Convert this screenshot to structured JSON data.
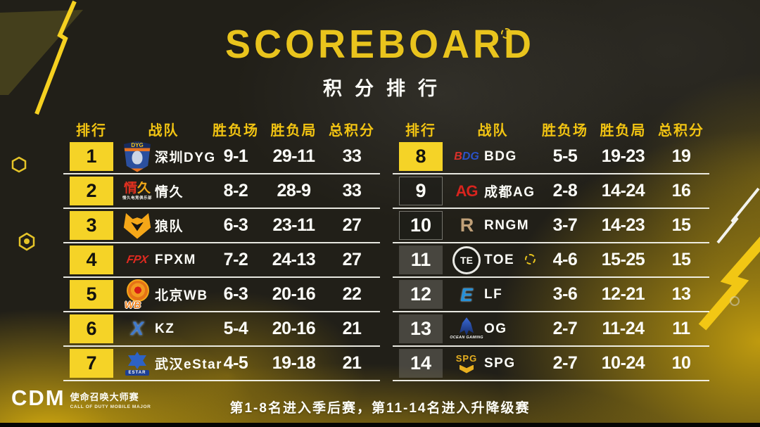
{
  "title": "SCOREBOARD",
  "subtitle": "积分排行",
  "columns": [
    "排行",
    "战队",
    "胜负场",
    "胜负局",
    "总积分"
  ],
  "tables": [
    {
      "side": "left",
      "rows": [
        {
          "rank": "1",
          "team": "深圳DYG",
          "series": "9-1",
          "maps": "29-11",
          "points": "33",
          "rank_style": "gold",
          "logo": {
            "style": "dyg",
            "text": "DYG"
          }
        },
        {
          "rank": "2",
          "team": "情久",
          "series": "8-2",
          "maps": "28-9",
          "points": "33",
          "rank_style": "gold",
          "logo": {
            "style": "qj",
            "text": "情久",
            "caption": "情久电竞俱乐部"
          }
        },
        {
          "rank": "3",
          "team": "狼队",
          "series": "6-3",
          "maps": "23-11",
          "points": "27",
          "rank_style": "gold",
          "logo": {
            "style": "wolf"
          }
        },
        {
          "rank": "4",
          "team": "FPXM",
          "series": "7-2",
          "maps": "24-13",
          "points": "27",
          "rank_style": "gold",
          "logo": {
            "style": "fpx",
            "text": "FPX"
          }
        },
        {
          "rank": "5",
          "team": "北京WB",
          "series": "6-3",
          "maps": "20-16",
          "points": "22",
          "rank_style": "gold",
          "logo": {
            "style": "wb",
            "text": "WB"
          }
        },
        {
          "rank": "6",
          "team": "KZ",
          "series": "5-4",
          "maps": "20-16",
          "points": "21",
          "rank_style": "gold",
          "logo": {
            "style": "kz",
            "text": "X"
          }
        },
        {
          "rank": "7",
          "team": "武汉eStar",
          "series": "4-5",
          "maps": "19-18",
          "points": "21",
          "rank_style": "gold",
          "logo": {
            "style": "estar",
            "caption": "ESTAR"
          }
        }
      ]
    },
    {
      "side": "right",
      "rows": [
        {
          "rank": "8",
          "team": "BDG",
          "series": "5-5",
          "maps": "19-23",
          "points": "19",
          "rank_style": "gold",
          "logo": {
            "style": "bdg",
            "text": "BDG"
          }
        },
        {
          "rank": "9",
          "team": "成都AG",
          "series": "2-8",
          "maps": "14-24",
          "points": "16",
          "rank_style": "outline",
          "logo": {
            "style": "ag",
            "text": "AG"
          }
        },
        {
          "rank": "10",
          "team": "RNGM",
          "series": "3-7",
          "maps": "14-23",
          "points": "15",
          "rank_style": "outline",
          "logo": {
            "style": "rngm",
            "text": "R"
          }
        },
        {
          "rank": "11",
          "team": "TOE",
          "series": "4-6",
          "maps": "15-25",
          "points": "15",
          "rank_style": "gray",
          "logo": {
            "style": "toe",
            "text": "TE"
          }
        },
        {
          "rank": "12",
          "team": "LF",
          "series": "3-6",
          "maps": "12-21",
          "points": "13",
          "rank_style": "gray",
          "logo": {
            "style": "lf",
            "text": "E"
          }
        },
        {
          "rank": "13",
          "team": "OG",
          "series": "2-7",
          "maps": "11-24",
          "points": "11",
          "rank_style": "gray",
          "logo": {
            "style": "og",
            "caption": "OCEAN GAMING"
          }
        },
        {
          "rank": "14",
          "team": "SPG",
          "series": "2-7",
          "maps": "10-24",
          "points": "10",
          "rank_style": "gray",
          "logo": {
            "style": "spg",
            "text": "SPG"
          }
        }
      ]
    }
  ],
  "footer": {
    "note": "第1-8名进入季后赛，第11-14名进入升降级赛",
    "logo": {
      "main": "CDM",
      "cn": "使命召唤大师赛",
      "en": "CALL OF DUTY MOBILE MAJOR"
    }
  },
  "icons": {
    "reticle": "segmented-circle",
    "lightning": "bolt-slash",
    "hexagon": "hex-marker"
  },
  "colors": {
    "accent_yellow": "#f2c412",
    "rank_highlight": "#f5d327",
    "background_dark": "#211f18",
    "smoke_gold": "#d8ae0e",
    "text_white": "#fdfdf8"
  }
}
